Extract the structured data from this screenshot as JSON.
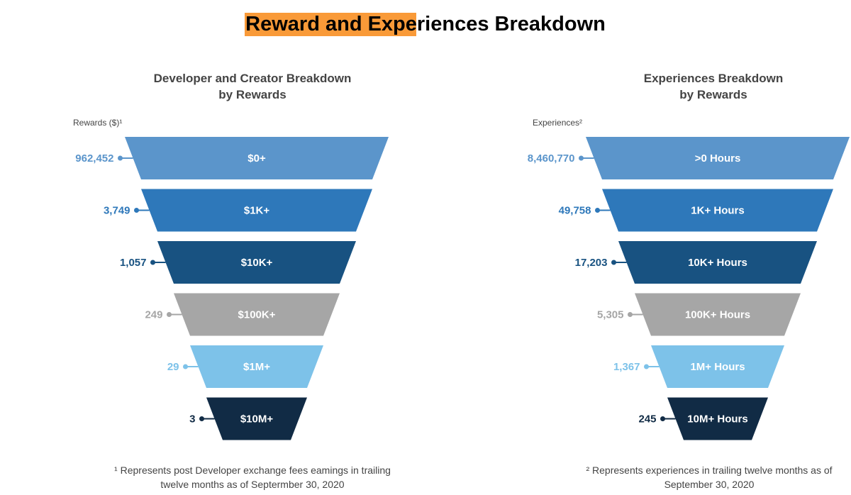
{
  "page": {
    "title": "Reward and Experiences Breakdown",
    "highlight_color": "#f99a38"
  },
  "chart_data": [
    {
      "type": "funnel",
      "title_lines": [
        "Developer and Creator Breakdown",
        "by Rewards"
      ],
      "axis_label": "Rewards ($)¹",
      "categories": [
        "$0+",
        "$1K+",
        "$10K+",
        "$100K+",
        "$1M+",
        "$10M+"
      ],
      "values": [
        962452,
        3749,
        1057,
        249,
        29,
        3
      ],
      "value_labels": [
        "962,452",
        "3,749",
        "1,057",
        "249",
        "29",
        "3"
      ],
      "colors": [
        "#5b95cb",
        "#2e78ba",
        "#185281",
        "#a6a6a6",
        "#7dc2e9",
        "#112b45"
      ],
      "footnote_lines": [
        "¹ Represents post Developer exchange fees eamings in trailing",
        "twelve months as of Septermber 30, 2020"
      ]
    },
    {
      "type": "funnel",
      "title_lines": [
        "Experiences Breakdown",
        "by Rewards"
      ],
      "axis_label": "Experiences²",
      "categories": [
        ">0 Hours",
        "1K+ Hours",
        "10K+ Hours",
        "100K+ Hours",
        "1M+ Hours",
        "10M+ Hours"
      ],
      "values": [
        8460770,
        49758,
        17203,
        5305,
        1367,
        245
      ],
      "value_labels": [
        "8,460,770",
        "49,758",
        "17,203",
        "5,305",
        "1,367",
        "245"
      ],
      "colors": [
        "#5b95cb",
        "#2e78ba",
        "#185281",
        "#a6a6a6",
        "#7dc2e9",
        "#112b45"
      ],
      "footnote_lines": [
        "² Represents experiences in trailing twelve months as of",
        "September 30, 2020"
      ]
    }
  ]
}
